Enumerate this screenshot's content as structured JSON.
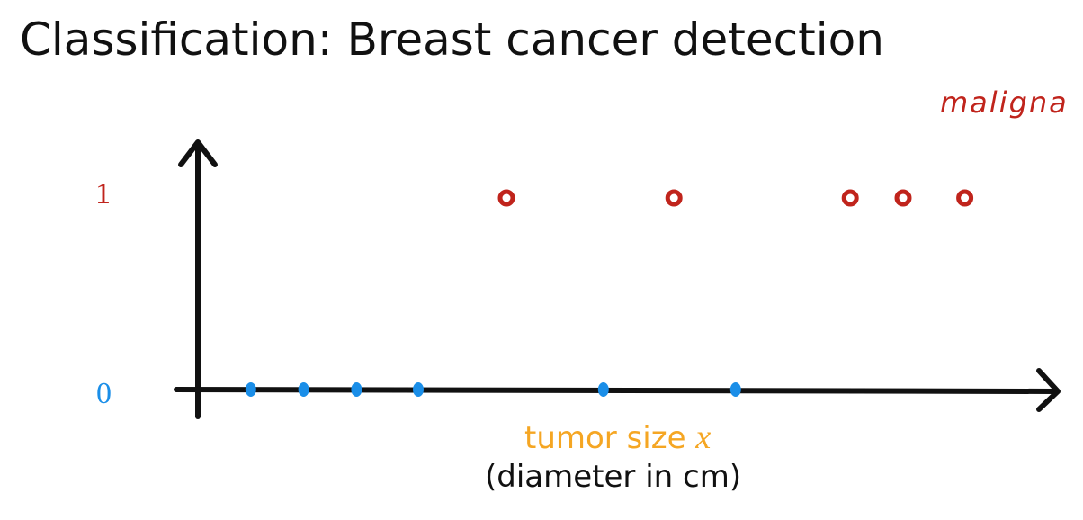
{
  "title": "Classification: Breast cancer detection",
  "annotation": "maligna",
  "colors": {
    "text": "#111111",
    "malignant": "#c0241c",
    "benign": "#1a8ee8",
    "xlabel": "#f5a623",
    "axis": "#111111"
  },
  "chart_data": {
    "type": "scatter",
    "y_ticks": [
      {
        "value": 1,
        "label": "1"
      },
      {
        "value": 0,
        "label": "0"
      }
    ],
    "xlabel": "tumor size",
    "xlabel_var": "x",
    "xlabel_sub": "(diameter in cm)",
    "xlim": [
      0,
      10
    ],
    "ylim": [
      0,
      1
    ],
    "series": [
      {
        "color": "#1a8ee8",
        "points": [
          {
            "x": 0.6,
            "y": 0
          },
          {
            "x": 1.2,
            "y": 0
          },
          {
            "x": 1.8,
            "y": 0
          },
          {
            "x": 2.5,
            "y": 0
          },
          {
            "x": 4.6,
            "y": 0
          },
          {
            "x": 6.1,
            "y": 0
          }
        ]
      },
      {
        "color": "#c0241c",
        "points": [
          {
            "x": 3.5,
            "y": 1
          },
          {
            "x": 5.4,
            "y": 1
          },
          {
            "x": 7.4,
            "y": 1
          },
          {
            "x": 8.0,
            "y": 1
          },
          {
            "x": 8.7,
            "y": 1
          }
        ]
      }
    ]
  }
}
